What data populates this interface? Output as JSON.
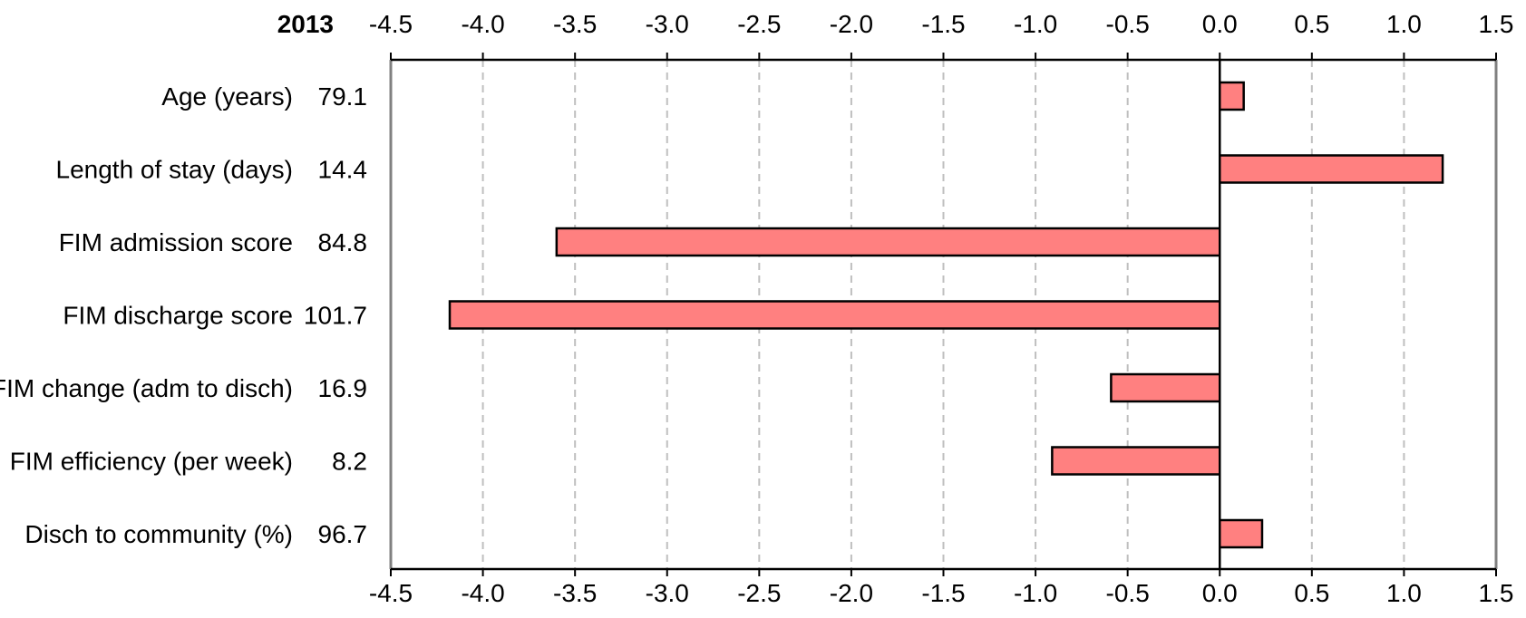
{
  "chart_data": {
    "type": "bar",
    "orientation": "horizontal",
    "corner_label": "2013",
    "categories": [
      "Age (years)",
      "Length of stay (days)",
      "FIM admission score",
      "FIM discharge score",
      "FIM change (adm to disch)",
      "FIM efficiency (per week)",
      "Disch to community (%)"
    ],
    "category_values": [
      "79.1",
      "14.4",
      "84.8",
      "101.7",
      "16.9",
      "8.2",
      "96.7"
    ],
    "values": [
      0.13,
      1.21,
      -3.6,
      -4.18,
      -0.59,
      -0.91,
      0.23
    ],
    "xlim": [
      -4.5,
      1.5
    ],
    "xticks": [
      -4.5,
      -4.0,
      -3.5,
      -3.0,
      -2.5,
      -2.0,
      -1.5,
      -1.0,
      -0.5,
      0.0,
      0.5,
      1.0,
      1.5
    ],
    "xtick_labels": [
      "-4.5",
      "-4.0",
      "-3.5",
      "-3.0",
      "-2.5",
      "-2.0",
      "-1.5",
      "-1.0",
      "-0.5",
      "0.0",
      "0.5",
      "1.0",
      "1.5"
    ],
    "grid": "vertical dashed",
    "legend": "none",
    "colors": {
      "bar_fill": "#ff8080",
      "bar_stroke": "#000000",
      "grid": "#bfbfbf",
      "axis": "#000000",
      "side_border": "#808080"
    }
  }
}
